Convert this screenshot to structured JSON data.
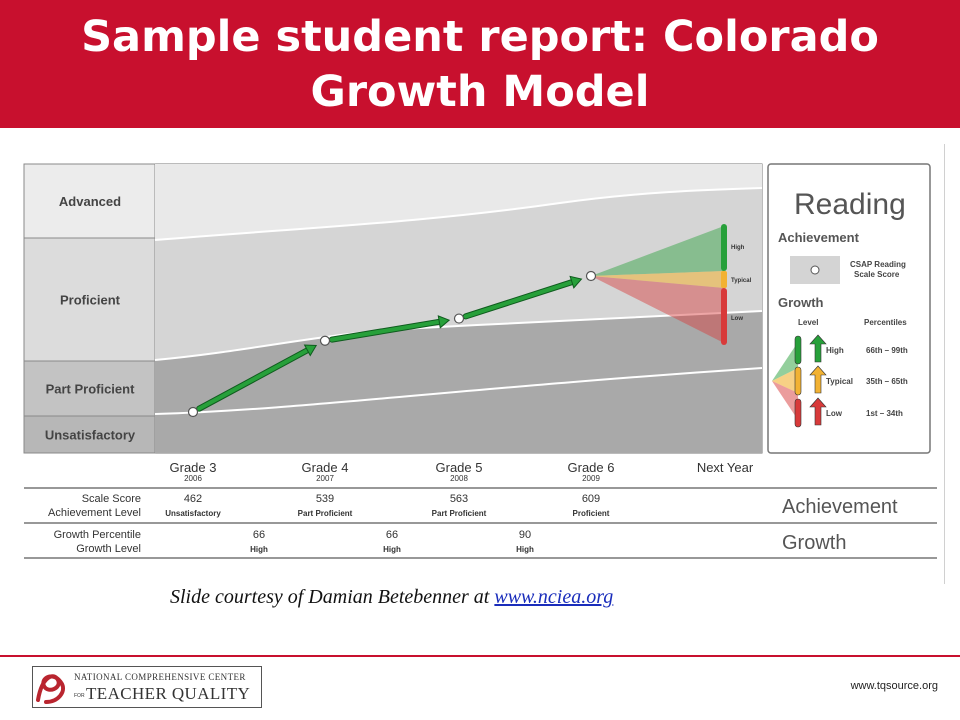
{
  "slide": {
    "title_line1": "Sample student report:  Colorado",
    "title_line2": "Growth Model",
    "courtesy_text": "Slide courtesy of Damian Betebenner at ",
    "courtesy_link": "www.nciea.org",
    "footer_org_line1": "NATIONAL COMPREHENSIVE CENTER",
    "footer_org_for": "FOR",
    "footer_org_line2": "TEACHER QUALITY",
    "footer_site": "www.tqsource.org"
  },
  "colors": {
    "banner": "#c8102e",
    "advanced_band": "#e9e9e9",
    "proficient_band": "#d5d5d5",
    "lower_band": "#a9a9a9",
    "arrow": "#27a03a",
    "high": "#27a03a",
    "typical": "#f2b233",
    "low": "#d83a3a"
  },
  "chart_data": {
    "type": "line",
    "title": "Reading",
    "achievement_levels": [
      "Advanced",
      "Proficient",
      "Part Proficient",
      "Unsatisfactory"
    ],
    "categories": [
      "Grade 3",
      "Grade 4",
      "Grade 5",
      "Grade 6",
      "Next Year"
    ],
    "years": [
      "2006",
      "2007",
      "2008",
      "2009",
      ""
    ],
    "scale_scores": [
      462,
      539,
      563,
      609
    ],
    "achievement_level_labels": [
      "Unsatisfactory",
      "Part Proficient",
      "Part Proficient",
      "Proficient"
    ],
    "growth_percentiles": [
      66,
      66,
      90
    ],
    "growth_level_labels": [
      "High",
      "High",
      "High"
    ],
    "projection_levels": [
      "High",
      "Typical",
      "Low"
    ],
    "table_row_labels": {
      "row1_line1": "Scale Score",
      "row1_line2": "Achievement Level",
      "row2_line1": "Growth Percentile",
      "row2_line2": "Growth Level"
    },
    "table_tags": {
      "achievement": "Achievement",
      "growth": "Growth"
    },
    "legend": {
      "title": "Reading",
      "achievement_heading": "Achievement",
      "achievement_item_line1": "CSAP Reading",
      "achievement_item_line2": "Scale Score",
      "growth_heading": "Growth",
      "col_level": "Level",
      "col_percentiles": "Percentiles",
      "items": [
        {
          "level": "High",
          "range": "66th – 99th"
        },
        {
          "level": "Typical",
          "range": "35th – 65th"
        },
        {
          "level": "Low",
          "range": "1st – 34th"
        }
      ]
    }
  }
}
